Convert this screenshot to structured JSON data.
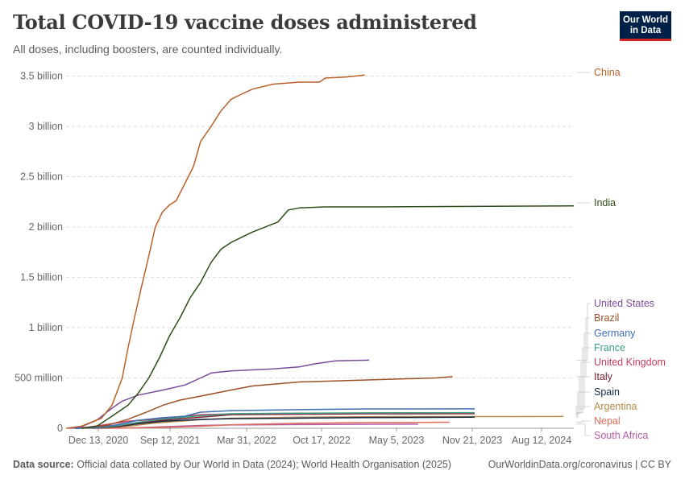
{
  "header": {
    "title": "Total COVID-19 vaccine doses administered",
    "subtitle": "All doses, including boosters, are counted individually.",
    "logo_line1": "Our World",
    "logo_line2": "in Data"
  },
  "footer": {
    "source_label": "Data source:",
    "source_text": "Official data collated by Our World in Data (2024); World Health Organisation (2025)",
    "url": "OurWorldinData.org/coronavirus | CC BY"
  },
  "colors": {
    "China": "#b8602a",
    "India": "#2c4d1a",
    "United States": "#7b4b9a",
    "Brazil": "#9a5128",
    "Germany": "#3e6eb4",
    "France": "#3b9e86",
    "United Kingdom": "#c83a5b",
    "Italy": "#7a1f2b",
    "Spain": "#14284b",
    "Argentina": "#b48a47",
    "Nepal": "#e06c5a",
    "South Africa": "#b45aa8"
  },
  "chart_data": {
    "type": "line",
    "title": "Total COVID-19 vaccine doses administered",
    "subtitle": "All doses, including boosters, are counted individually.",
    "xlabel": "",
    "ylabel": "",
    "x_ticks": [
      "Dec 13, 2020",
      "Sep 12, 2021",
      "Mar 31, 2022",
      "Oct 17, 2022",
      "May 5, 2023",
      "Nov 21, 2023",
      "Aug 12, 2024"
    ],
    "y_ticks": [
      "0",
      "500 million",
      "1 billion",
      "1.5 billion",
      "2 billion",
      "2.5 billion",
      "3 billion",
      "3.5 billion"
    ],
    "y_tick_values": [
      0,
      500000000,
      1000000000,
      1500000000,
      2000000000,
      2500000000,
      3000000000,
      3500000000
    ],
    "xlim": [
      "2020-12-01",
      "2024-12-31"
    ],
    "ylim": [
      0,
      3600000000
    ],
    "grid": true,
    "legend": "right-inline",
    "series": [
      {
        "name": "China",
        "points": [
          [
            "2020-12-01",
            0
          ],
          [
            "2021-01-15",
            20000000
          ],
          [
            "2021-03-15",
            100000000
          ],
          [
            "2021-04-15",
            230000000
          ],
          [
            "2021-05-15",
            500000000
          ],
          [
            "2021-06-01",
            800000000
          ],
          [
            "2021-06-20",
            1100000000
          ],
          [
            "2021-07-10",
            1400000000
          ],
          [
            "2021-07-31",
            1700000000
          ],
          [
            "2021-08-20",
            2000000000
          ],
          [
            "2021-09-10",
            2150000000
          ],
          [
            "2021-10-01",
            2220000000
          ],
          [
            "2021-10-20",
            2260000000
          ],
          [
            "2021-11-10",
            2400000000
          ],
          [
            "2021-12-10",
            2600000000
          ],
          [
            "2021-12-31",
            2850000000
          ],
          [
            "2022-01-31",
            3000000000
          ],
          [
            "2022-02-28",
            3150000000
          ],
          [
            "2022-03-31",
            3270000000
          ],
          [
            "2022-04-30",
            3320000000
          ],
          [
            "2022-06-01",
            3370000000
          ],
          [
            "2022-08-01",
            3420000000
          ],
          [
            "2022-10-17",
            3440000000
          ],
          [
            "2022-12-15",
            3440000000
          ],
          [
            "2023-01-01",
            3480000000
          ],
          [
            "2023-03-01",
            3490000000
          ],
          [
            "2023-04-27",
            3510000000
          ]
        ]
      },
      {
        "name": "India",
        "points": [
          [
            "2021-01-16",
            0
          ],
          [
            "2021-03-01",
            20000000
          ],
          [
            "2021-04-15",
            120000000
          ],
          [
            "2021-06-01",
            230000000
          ],
          [
            "2021-07-01",
            350000000
          ],
          [
            "2021-08-01",
            500000000
          ],
          [
            "2021-09-01",
            700000000
          ],
          [
            "2021-10-01",
            920000000
          ],
          [
            "2021-11-01",
            1100000000
          ],
          [
            "2021-12-01",
            1300000000
          ],
          [
            "2021-12-31",
            1450000000
          ],
          [
            "2022-01-31",
            1650000000
          ],
          [
            "2022-03-01",
            1780000000
          ],
          [
            "2022-04-01",
            1850000000
          ],
          [
            "2022-06-01",
            1950000000
          ],
          [
            "2022-08-15",
            2050000000
          ],
          [
            "2022-09-15",
            2170000000
          ],
          [
            "2022-10-17",
            2190000000
          ],
          [
            "2022-12-31",
            2200000000
          ],
          [
            "2023-06-01",
            2200000000
          ],
          [
            "2024-12-31",
            2210000000
          ]
        ]
      },
      {
        "name": "United States",
        "points": [
          [
            "2020-12-14",
            0
          ],
          [
            "2021-01-15",
            15000000
          ],
          [
            "2021-03-01",
            80000000
          ],
          [
            "2021-04-15",
            200000000
          ],
          [
            "2021-05-15",
            270000000
          ],
          [
            "2021-07-01",
            330000000
          ],
          [
            "2021-09-12",
            380000000
          ],
          [
            "2021-11-15",
            430000000
          ],
          [
            "2021-12-31",
            500000000
          ],
          [
            "2022-02-01",
            550000000
          ],
          [
            "2022-03-31",
            570000000
          ],
          [
            "2022-08-01",
            590000000
          ],
          [
            "2022-10-17",
            610000000
          ],
          [
            "2022-12-01",
            640000000
          ],
          [
            "2023-02-01",
            670000000
          ],
          [
            "2023-05-10",
            677000000
          ]
        ]
      },
      {
        "name": "Brazil",
        "points": [
          [
            "2021-01-17",
            0
          ],
          [
            "2021-04-01",
            30000000
          ],
          [
            "2021-06-01",
            90000000
          ],
          [
            "2021-08-01",
            170000000
          ],
          [
            "2021-09-12",
            230000000
          ],
          [
            "2021-11-01",
            280000000
          ],
          [
            "2022-01-01",
            320000000
          ],
          [
            "2022-03-31",
            380000000
          ],
          [
            "2022-06-01",
            420000000
          ],
          [
            "2022-10-17",
            460000000
          ],
          [
            "2023-05-05",
            480000000
          ],
          [
            "2023-11-21",
            500000000
          ],
          [
            "2024-01-10",
            513000000
          ]
        ]
      },
      {
        "name": "Germany",
        "points": [
          [
            "2020-12-27",
            0
          ],
          [
            "2021-03-01",
            8000000
          ],
          [
            "2021-05-01",
            35000000
          ],
          [
            "2021-07-01",
            80000000
          ],
          [
            "2021-09-12",
            105000000
          ],
          [
            "2021-11-15",
            120000000
          ],
          [
            "2021-12-31",
            160000000
          ],
          [
            "2022-03-31",
            175000000
          ],
          [
            "2022-10-17",
            185000000
          ],
          [
            "2023-05-05",
            192000000
          ],
          [
            "2024-03-15",
            193000000
          ]
        ]
      },
      {
        "name": "France",
        "points": [
          [
            "2020-12-27",
            0
          ],
          [
            "2021-03-01",
            5000000
          ],
          [
            "2021-05-01",
            25000000
          ],
          [
            "2021-07-01",
            60000000
          ],
          [
            "2021-09-12",
            90000000
          ],
          [
            "2021-12-31",
            125000000
          ],
          [
            "2022-03-31",
            145000000
          ],
          [
            "2022-10-17",
            150000000
          ],
          [
            "2023-05-05",
            153000000
          ],
          [
            "2024-03-15",
            155000000
          ]
        ]
      },
      {
        "name": "United Kingdom",
        "points": [
          [
            "2020-12-08",
            0
          ],
          [
            "2021-02-01",
            10000000
          ],
          [
            "2021-04-01",
            38000000
          ],
          [
            "2021-06-01",
            70000000
          ],
          [
            "2021-09-12",
            95000000
          ],
          [
            "2021-12-31",
            135000000
          ],
          [
            "2022-03-31",
            142000000
          ],
          [
            "2022-10-17",
            148000000
          ],
          [
            "2023-05-05",
            151000000
          ],
          [
            "2024-03-15",
            152000000
          ]
        ]
      },
      {
        "name": "Italy",
        "points": [
          [
            "2020-12-27",
            0
          ],
          [
            "2021-03-01",
            5000000
          ],
          [
            "2021-05-01",
            20000000
          ],
          [
            "2021-07-01",
            55000000
          ],
          [
            "2021-09-12",
            80000000
          ],
          [
            "2021-12-31",
            110000000
          ],
          [
            "2022-03-31",
            135000000
          ],
          [
            "2022-10-17",
            140000000
          ],
          [
            "2023-05-05",
            144000000
          ],
          [
            "2024-03-15",
            145000000
          ]
        ]
      },
      {
        "name": "Spain",
        "points": [
          [
            "2020-12-27",
            0
          ],
          [
            "2021-03-01",
            4000000
          ],
          [
            "2021-05-01",
            16000000
          ],
          [
            "2021-07-01",
            45000000
          ],
          [
            "2021-09-12",
            70000000
          ],
          [
            "2021-12-31",
            88000000
          ],
          [
            "2022-03-31",
            95000000
          ],
          [
            "2022-10-17",
            100000000
          ],
          [
            "2023-05-05",
            106000000
          ],
          [
            "2024-03-15",
            110000000
          ]
        ]
      },
      {
        "name": "Argentina",
        "points": [
          [
            "2020-12-29",
            0
          ],
          [
            "2021-04-01",
            6000000
          ],
          [
            "2021-06-01",
            20000000
          ],
          [
            "2021-08-01",
            45000000
          ],
          [
            "2021-09-12",
            58000000
          ],
          [
            "2021-12-31",
            85000000
          ],
          [
            "2022-03-31",
            100000000
          ],
          [
            "2022-10-17",
            110000000
          ],
          [
            "2023-05-05",
            115000000
          ],
          [
            "2024-12-01",
            117000000
          ]
        ]
      },
      {
        "name": "Nepal",
        "points": [
          [
            "2021-01-27",
            0
          ],
          [
            "2021-06-01",
            3000000
          ],
          [
            "2021-09-12",
            8000000
          ],
          [
            "2021-12-31",
            20000000
          ],
          [
            "2022-03-31",
            35000000
          ],
          [
            "2022-10-17",
            50000000
          ],
          [
            "2023-05-05",
            57000000
          ],
          [
            "2024-01-01",
            60000000
          ]
        ]
      },
      {
        "name": "South Africa",
        "points": [
          [
            "2021-02-17",
            0
          ],
          [
            "2021-06-01",
            2000000
          ],
          [
            "2021-09-12",
            15000000
          ],
          [
            "2021-12-31",
            28000000
          ],
          [
            "2022-03-31",
            33000000
          ],
          [
            "2022-10-17",
            37000000
          ],
          [
            "2023-05-05",
            40000000
          ],
          [
            "2023-10-01",
            41000000
          ]
        ]
      }
    ]
  }
}
